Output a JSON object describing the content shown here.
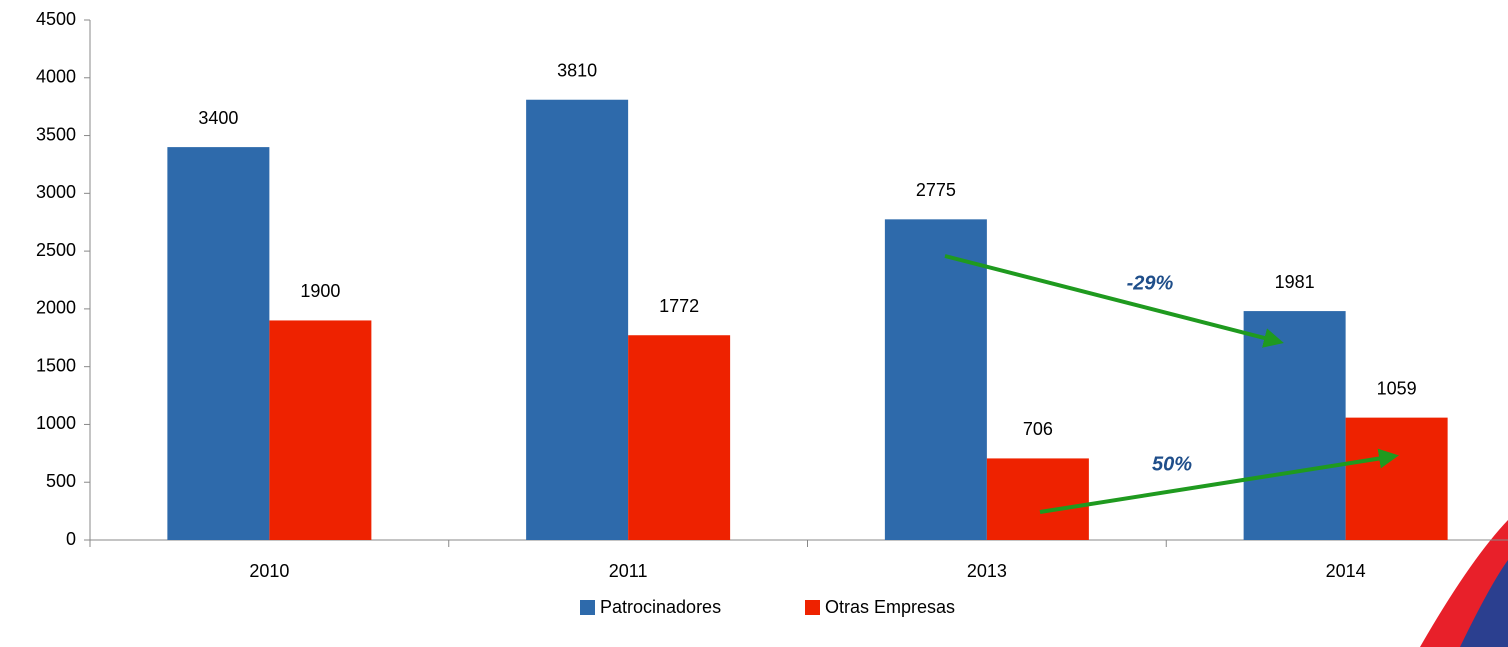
{
  "chart_data": {
    "type": "bar",
    "categories": [
      "2010",
      "2011",
      "2013",
      "2014"
    ],
    "series": [
      {
        "name": "Patrocinadores",
        "color": "#2e6aab",
        "values": [
          3400,
          3810,
          2775,
          1981
        ]
      },
      {
        "name": "Otras Empresas",
        "color": "#ee2200",
        "values": [
          1900,
          1772,
          706,
          1059
        ]
      }
    ],
    "ylim": [
      0,
      4500
    ],
    "yticks": [
      0,
      500,
      1000,
      1500,
      2000,
      2500,
      3000,
      3500,
      4000,
      4500
    ],
    "grid": false,
    "legend": "bottom",
    "annotations": [
      "-29%",
      "50%"
    ]
  }
}
